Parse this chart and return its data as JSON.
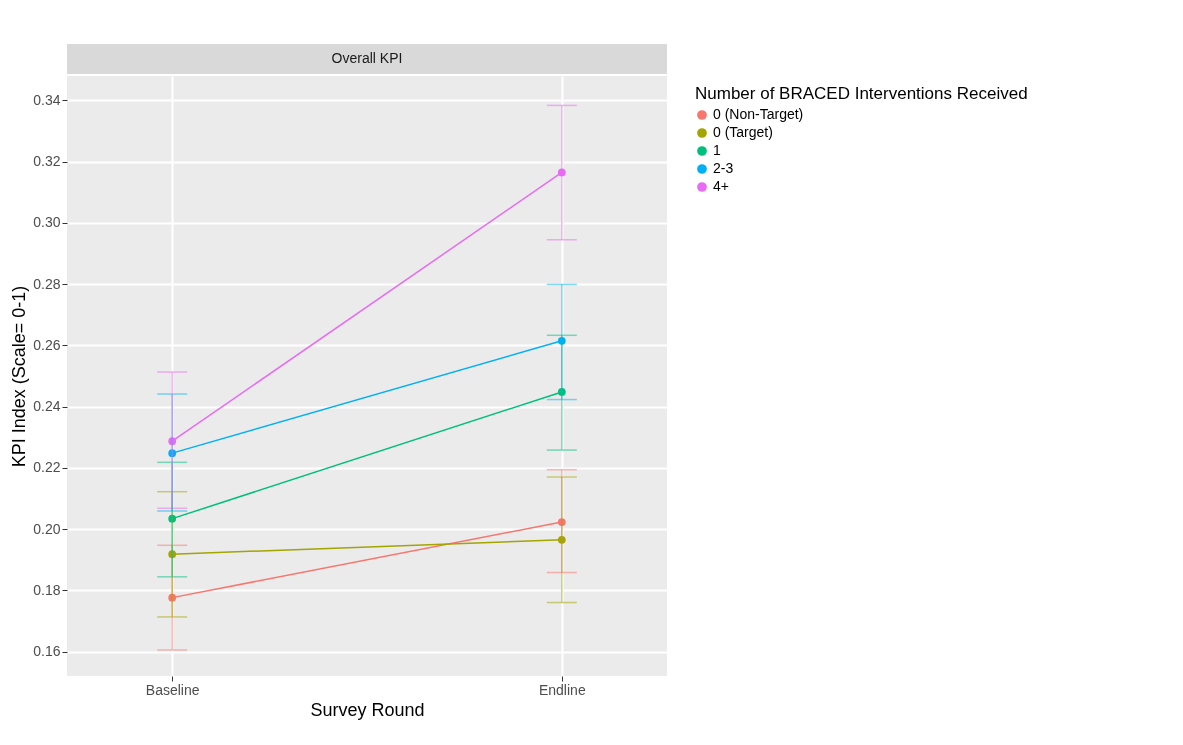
{
  "chart_data": {
    "type": "line",
    "title": "Overall KPI",
    "xlabel": "Survey Round",
    "ylabel": "KPI Index (Scale= 0-1)",
    "legend_title": "Number of BRACED Interventions Received",
    "categories": [
      "Baseline",
      "Endline"
    ],
    "series": [
      {
        "name": "0 (Non-Target)",
        "color": "#f8766d",
        "values": [
          0.1776,
          0.2023
        ],
        "errors": [
          [
            0.1605,
            0.1947
          ],
          [
            0.1858,
            0.2194
          ]
        ]
      },
      {
        "name": "0 (Target)",
        "color": "#a3a500",
        "values": [
          0.1918,
          0.1965
        ],
        "errors": [
          [
            0.1713,
            0.2122
          ],
          [
            0.176,
            0.217
          ]
        ]
      },
      {
        "name": "1",
        "color": "#00bf7d",
        "values": [
          0.2034,
          0.2448
        ],
        "errors": [
          [
            0.1844,
            0.2218
          ],
          [
            0.2258,
            0.2633
          ]
        ]
      },
      {
        "name": "2-3",
        "color": "#00b0f6",
        "values": [
          0.2248,
          0.2615
        ],
        "errors": [
          [
            0.2059,
            0.2441
          ],
          [
            0.2423,
            0.2799
          ]
        ]
      },
      {
        "name": "4+",
        "color": "#e76bf3",
        "values": [
          0.2287,
          0.3165
        ],
        "errors": [
          [
            0.2068,
            0.2513
          ],
          [
            0.2945,
            0.3384
          ]
        ]
      }
    ],
    "ylim": [
      0.152,
      0.348
    ],
    "yticks": [
      0.16,
      0.18,
      {
        "value": 0.2,
        "label": "0.20"
      },
      0.22,
      0.24,
      0.26,
      0.28,
      {
        "value": 0.3,
        "label": "0.30"
      },
      0.32,
      0.34
    ],
    "grid": true,
    "legend": "right",
    "marker": "circle",
    "line_style": "solid"
  }
}
